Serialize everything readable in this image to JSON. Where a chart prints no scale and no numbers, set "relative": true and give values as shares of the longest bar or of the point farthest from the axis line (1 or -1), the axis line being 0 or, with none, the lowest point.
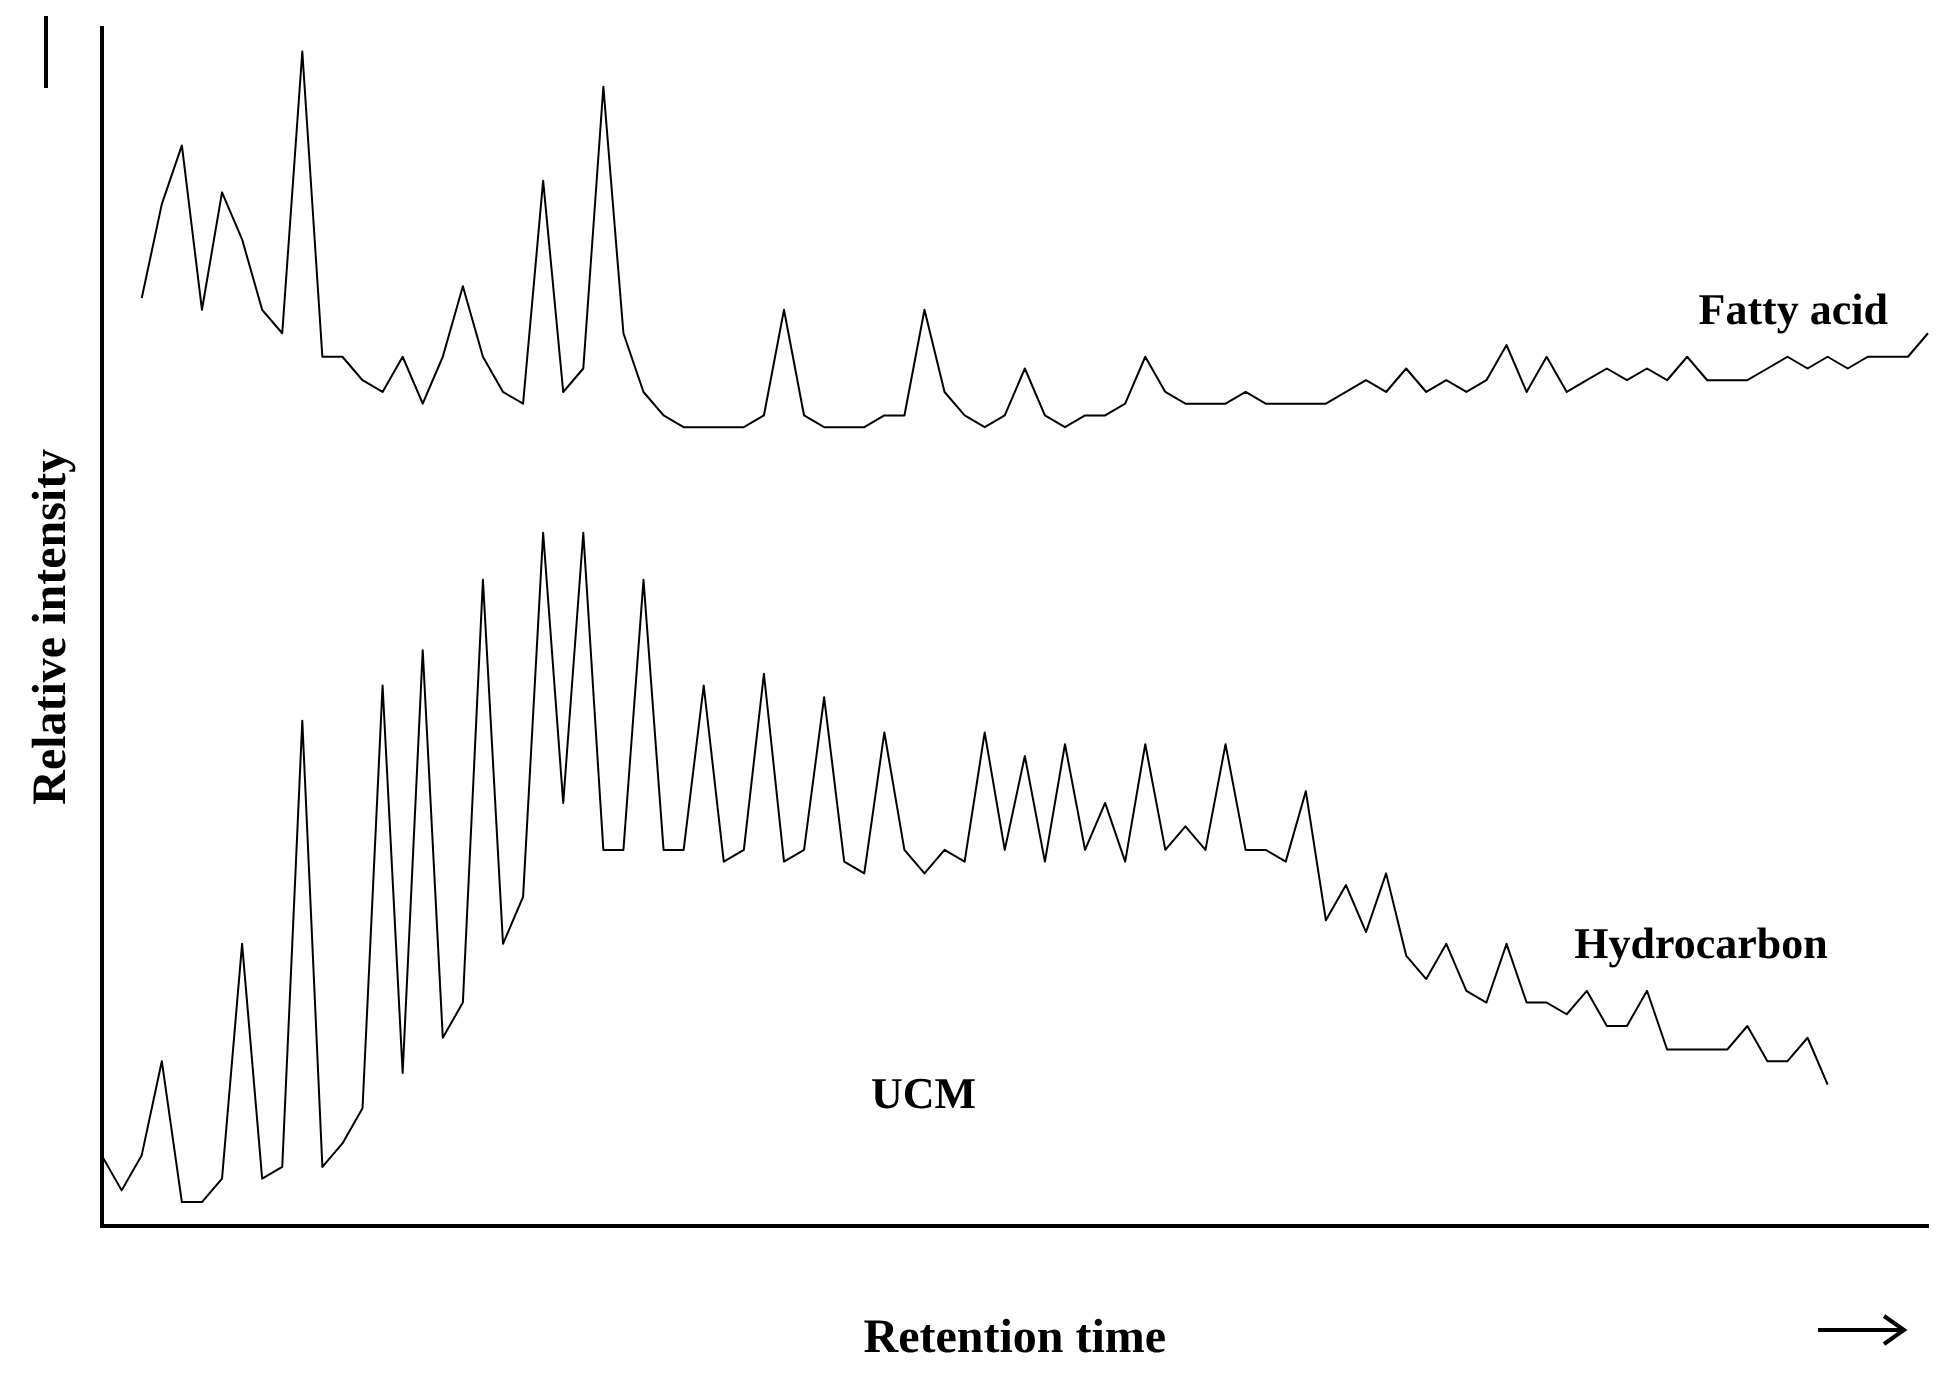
{
  "chart_data": {
    "type": "line",
    "relative": true,
    "xlabel": "Retention time",
    "ylabel": "Relative intensity",
    "annotations": [
      "UCM"
    ],
    "legend": false,
    "grid": false,
    "marker": "none",
    "line_style": "solid",
    "categories": [
      null,
      null,
      null,
      null,
      null,
      null,
      null,
      null,
      null,
      null,
      null,
      null,
      null,
      null,
      null,
      null,
      null,
      null,
      null,
      null,
      null,
      null,
      null,
      null,
      null,
      null,
      null,
      null,
      null,
      null,
      null,
      null,
      null,
      null,
      null,
      null,
      null,
      null,
      null,
      null,
      null,
      null,
      null,
      null,
      null,
      null,
      null,
      null,
      null,
      null,
      null,
      null,
      null,
      null,
      null,
      null,
      null,
      null,
      null,
      null,
      null,
      null,
      null,
      null,
      null,
      null,
      null,
      null,
      null,
      null,
      null,
      null,
      null,
      null,
      null,
      null,
      null,
      null,
      null,
      null,
      null,
      null,
      null,
      null,
      null,
      null,
      null,
      null,
      null,
      null,
      null,
      null
    ],
    "series": [
      {
        "name": "Fatty acid",
        "color": "#000000",
        "values": [
          null,
          null,
          0.79,
          0.87,
          0.92,
          0.78,
          0.88,
          0.84,
          0.78,
          0.76,
          1.0,
          0.74,
          0.74,
          0.72,
          0.71,
          0.74,
          0.7,
          0.74,
          0.8,
          0.74,
          0.71,
          0.7,
          0.89,
          0.71,
          0.73,
          0.97,
          0.76,
          0.71,
          0.69,
          0.68,
          0.68,
          0.68,
          0.68,
          0.69,
          0.78,
          0.69,
          0.68,
          0.68,
          0.68,
          0.69,
          0.69,
          0.78,
          0.71,
          0.69,
          0.68,
          0.69,
          0.73,
          0.69,
          0.68,
          0.69,
          0.69,
          0.7,
          0.74,
          0.71,
          0.7,
          0.7,
          0.7,
          0.71,
          0.7,
          0.7,
          0.7,
          0.7,
          0.71,
          0.72,
          0.71,
          0.73,
          0.71,
          0.72,
          0.71,
          0.72,
          0.75,
          0.71,
          0.74,
          0.71,
          0.72,
          0.73,
          0.72,
          0.73,
          0.72,
          0.74,
          0.72,
          0.72,
          0.72,
          0.73,
          0.74,
          0.73,
          0.74,
          0.73,
          0.74,
          0.74,
          0.74,
          0.76
        ]
      },
      {
        "name": "Hydrocarbon",
        "color": "#000000",
        "values": [
          0.06,
          0.03,
          0.06,
          0.14,
          0.02,
          0.02,
          0.04,
          0.24,
          0.04,
          0.05,
          0.43,
          0.05,
          0.07,
          0.1,
          0.46,
          0.13,
          0.49,
          0.16,
          0.19,
          0.55,
          0.24,
          0.28,
          0.59,
          0.36,
          0.59,
          0.32,
          0.32,
          0.55,
          0.32,
          0.32,
          0.46,
          0.31,
          0.32,
          0.47,
          0.31,
          0.32,
          0.45,
          0.31,
          0.3,
          0.42,
          0.32,
          0.3,
          0.32,
          0.31,
          0.42,
          0.32,
          0.4,
          0.31,
          0.41,
          0.32,
          0.36,
          0.31,
          0.41,
          0.32,
          0.34,
          0.32,
          0.41,
          0.32,
          0.32,
          0.31,
          0.37,
          0.26,
          0.29,
          0.25,
          0.3,
          0.23,
          0.21,
          0.24,
          0.2,
          0.19,
          0.24,
          0.19,
          0.19,
          0.18,
          0.2,
          0.17,
          0.17,
          0.2,
          0.15,
          0.15,
          0.15,
          0.15,
          0.17,
          0.14,
          0.14,
          0.16,
          0.12,
          null,
          null,
          null,
          null,
          null
        ]
      }
    ]
  }
}
